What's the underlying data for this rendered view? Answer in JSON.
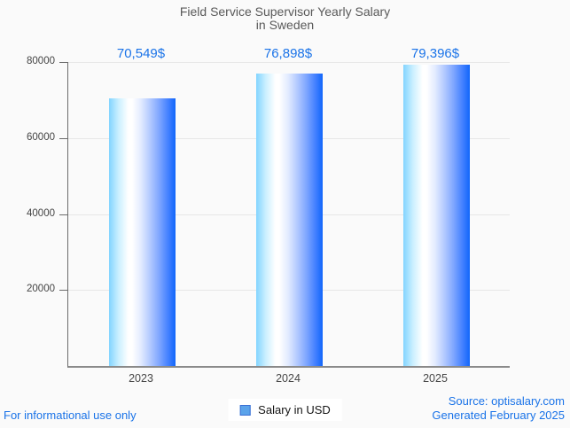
{
  "title": {
    "line1": "Field Service Supervisor Yearly Salary",
    "line2": "in Sweden"
  },
  "chart_data": {
    "type": "bar",
    "title": "Field Service Supervisor Yearly Salary in Sweden",
    "categories": [
      "2023",
      "2024",
      "2025"
    ],
    "values": [
      70549,
      76898,
      79396
    ],
    "value_labels": [
      "70,549$",
      "76,898$",
      "79,396$"
    ],
    "series": [
      {
        "name": "Salary in USD",
        "values": [
          70549,
          76898,
          79396
        ]
      }
    ],
    "xlabel": "",
    "ylabel": "",
    "ylim": [
      0,
      80000
    ],
    "yticks": [
      20000,
      40000,
      60000,
      80000
    ],
    "grid": "horizontal",
    "legend_position": "bottom-center"
  },
  "legend": {
    "label": "Salary in USD"
  },
  "footer": {
    "disclaimer": "For informational use only",
    "source_line1": "Source: optisalary.com",
    "source_line2": "Generated February 2025"
  },
  "colors": {
    "background": "#fafafa",
    "title_text": "#595959",
    "accent_blue": "#1a73e8",
    "bar_gradient_left": "#82d4ff",
    "bar_gradient_mid": "#ffffff",
    "bar_gradient_right": "#1166fa",
    "gridline": "#e7e7e7",
    "axis": "#8a8a8a",
    "legend_marker_fill": "#5ba3ea",
    "legend_marker_border": "#3b6fd4"
  }
}
